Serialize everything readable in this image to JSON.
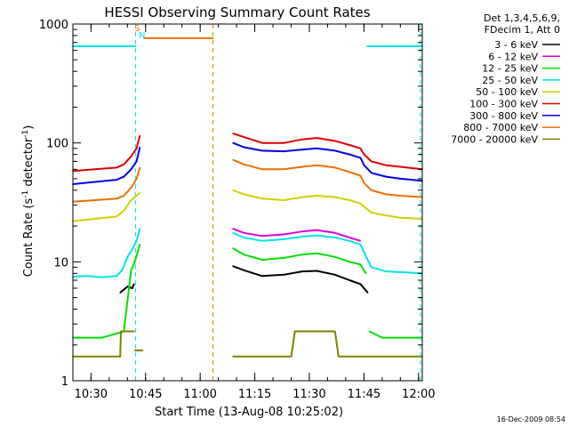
{
  "chart_data": {
    "type": "line",
    "title": "HESSI Observing Summary Count Rates",
    "xlabel": "Start Time (13-Aug-08 10:25:02)",
    "ylabel_main": "Count Rate (s",
    "ylabel_sup1": "-1",
    "ylabel_mid": " detector",
    "ylabel_sup2": "-1",
    "ylabel_end": ")",
    "x_unit": "minutes since 10:25:02",
    "xlim": [
      0,
      96
    ],
    "ylim": [
      1,
      1000
    ],
    "yscale": "log",
    "x_ticks": [
      {
        "label": "10:30",
        "x": 4.97
      },
      {
        "label": "10:45",
        "x": 19.97
      },
      {
        "label": "11:00",
        "x": 34.97
      },
      {
        "label": "11:15",
        "x": 49.97
      },
      {
        "label": "11:30",
        "x": 64.97
      },
      {
        "label": "11:45",
        "x": 79.97
      },
      {
        "label": "12:00",
        "x": 94.97
      }
    ],
    "y_ticks": [
      {
        "label": "1",
        "y": 1
      },
      {
        "label": "10",
        "y": 10
      },
      {
        "label": "100",
        "y": 100
      },
      {
        "label": "1000",
        "y": 1000
      }
    ],
    "legend_header": [
      "Det 1,3,4,5,6,9,",
      "FDecim 1, Att 0"
    ],
    "annotations": [
      {
        "text": "S",
        "x": 17.7,
        "y": 870,
        "color": "#e08000"
      },
      {
        "text": "N",
        "x": 19.0,
        "y": 760,
        "color": "#00e5e5"
      }
    ],
    "dashed_markers": [
      {
        "x": 17.2,
        "color": "#00e5e5"
      },
      {
        "x": 38.5,
        "color": "#e87800"
      },
      {
        "x": 95.5,
        "color": "#00e5e5"
      }
    ],
    "series": [
      {
        "name": "3 - 6 keV",
        "color": "#000000",
        "segments": [
          {
            "x": [
              13,
              15,
              16.3,
              16.8
            ],
            "y": [
              5.5,
              6.2,
              6.0,
              6.5
            ]
          },
          {
            "x": [
              44,
              47,
              52,
              58,
              63,
              67,
              72,
              76,
              79,
              81
            ],
            "y": [
              9.2,
              8.5,
              7.6,
              7.8,
              8.3,
              8.4,
              7.8,
              7.0,
              6.5,
              5.5
            ]
          }
        ]
      },
      {
        "name": "6 - 12 keV",
        "color": "#e000e0",
        "segments": [
          {
            "x": [
              44,
              47,
              52,
              58,
              63,
              67,
              72,
              76,
              79
            ],
            "y": [
              19,
              17.5,
              16.5,
              17,
              18,
              18.5,
              17.5,
              16,
              15
            ]
          }
        ]
      },
      {
        "name": "12 - 25 keV",
        "color": "#00e000",
        "segments": [
          {
            "x": [
              0,
              8,
              14,
              16,
              17,
              18.4
            ],
            "y": [
              2.3,
              2.3,
              2.6,
              8.5,
              10,
              14
            ]
          },
          {
            "x": [
              44,
              47,
              52,
              58,
              63,
              67,
              72,
              76,
              79,
              80.5
            ],
            "y": [
              13,
              11.5,
              10.4,
              10.8,
              11.5,
              11.8,
              11,
              10,
              9.5,
              8
            ]
          },
          {
            "x": [
              81.5,
              85,
              90,
              96
            ],
            "y": [
              2.6,
              2.3,
              2.3,
              2.3
            ]
          }
        ]
      },
      {
        "name": "25 - 50 keV",
        "color": "#00e5e5",
        "segments": [
          {
            "x": [
              0,
              4,
              8,
              12,
              13.5,
              15,
              16.5,
              17.5,
              18.4
            ],
            "y": [
              7.5,
              7.6,
              7.4,
              7.6,
              8.5,
              11,
              13,
              15,
              19
            ]
          },
          {
            "x": [
              44,
              47,
              52,
              58,
              63,
              67,
              72,
              76,
              79,
              80,
              82,
              86,
              90,
              96
            ],
            "y": [
              17.5,
              16,
              15,
              15.5,
              16.3,
              16.7,
              16,
              15,
              14,
              12,
              9,
              8.3,
              8.2,
              8.0
            ]
          },
          {
            "x": [
              0,
              17.2
            ],
            "y": [
              650,
              650
            ]
          },
          {
            "x": [
              80.8,
              96
            ],
            "y": [
              650,
              650
            ]
          }
        ]
      },
      {
        "name": "50 - 100 keV",
        "color": "#d0d000",
        "segments": [
          {
            "x": [
              0,
              6,
              12,
              14,
              16,
              18.4
            ],
            "y": [
              22,
              23,
              24,
              27,
              33,
              38
            ]
          },
          {
            "x": [
              44,
              47,
              52,
              58,
              63,
              67,
              72,
              76,
              79,
              80,
              82,
              86,
              90,
              96
            ],
            "y": [
              40,
              37,
              34,
              33,
              35,
              36,
              35,
              33,
              31,
              29,
              26,
              24.5,
              23.5,
              23
            ]
          }
        ]
      },
      {
        "name": "100 - 300 keV",
        "color": "#e00000",
        "segments": [
          {
            "x": [
              0,
              6,
              12,
              14,
              16,
              17.5,
              18.4
            ],
            "y": [
              58,
              60,
              62,
              66,
              77,
              90,
              115
            ]
          },
          {
            "x": [
              44,
              47,
              52,
              58,
              63,
              67,
              72,
              76,
              79,
              80,
              82,
              86,
              90,
              96
            ],
            "y": [
              120,
              112,
              100,
              100,
              107,
              110,
              104,
              96,
              90,
              80,
              70,
              65,
              63,
              60
            ]
          }
        ]
      },
      {
        "name": "300 - 800 keV",
        "color": "#0000e0",
        "segments": [
          {
            "x": [
              0,
              6,
              12,
              14,
              16,
              17.5,
              18.4
            ],
            "y": [
              45,
              47,
              49,
              52,
              60,
              70,
              92
            ]
          },
          {
            "x": [
              44,
              47,
              52,
              58,
              63,
              67,
              72,
              76,
              79,
              80,
              82,
              86,
              90,
              96
            ],
            "y": [
              100,
              92,
              86,
              85,
              88,
              90,
              86,
              80,
              75,
              65,
              56,
              52,
              50,
              48
            ]
          }
        ]
      },
      {
        "name": "800 - 7000 keV",
        "color": "#f07000",
        "segments": [
          {
            "x": [
              0,
              6,
              12,
              14,
              16,
              17.5,
              18.4
            ],
            "y": [
              32,
              33,
              34,
              36,
              42,
              50,
              62
            ]
          },
          {
            "x": [
              44,
              47,
              52,
              58,
              63,
              67,
              72,
              76,
              79,
              80,
              82,
              86,
              90,
              96
            ],
            "y": [
              72,
              66,
              60,
              60,
              63,
              65,
              62,
              57,
              53,
              46,
              40,
              37,
              36,
              35
            ]
          },
          {
            "x": [
              19.5,
              38.5
            ],
            "y": [
              760,
              760
            ]
          }
        ]
      },
      {
        "name": "7000 - 20000 keV",
        "color": "#808000",
        "segments": [
          {
            "x": [
              0,
              13,
              13.2,
              16.8
            ],
            "y": [
              1.6,
              1.6,
              2.6,
              2.6
            ]
          },
          {
            "x": [
              17,
              19.2
            ],
            "y": [
              1.8,
              1.8
            ]
          },
          {
            "x": [
              44,
              60,
              61,
              72,
              73,
              96
            ],
            "y": [
              1.6,
              1.6,
              2.6,
              2.6,
              1.6,
              1.6
            ]
          }
        ]
      }
    ],
    "grid": false,
    "legend_position": "outside-right"
  },
  "footer": {
    "timestamp": "16-Dec-2009 08:54"
  }
}
